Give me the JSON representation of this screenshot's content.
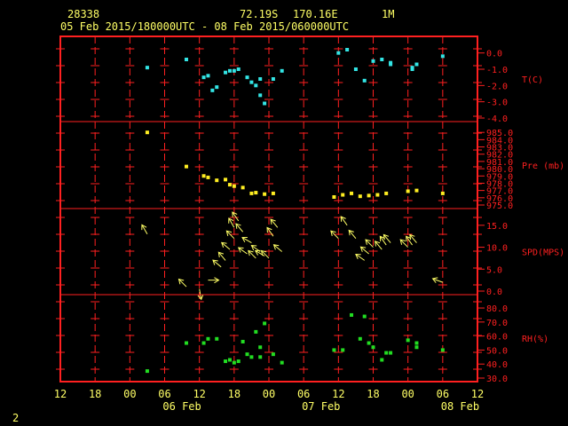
{
  "header": {
    "station": "28338",
    "lat": "72.19S",
    "lon": "170.16E",
    "interval": "1M",
    "range": "05 Feb 2015/180000UTC - 08 Feb 2015/060000UTC"
  },
  "footer": {
    "page": "2"
  },
  "colors": {
    "frame": "#ff2020",
    "text": "#ffff66",
    "temp": "#33e5e5",
    "pres": "#ffee22",
    "wind": "#ffff66",
    "rh": "#22dd22"
  },
  "chart_data": {
    "type": "scatter",
    "x_unit": "hours since 05 Feb 12 UTC",
    "x_ticks": [
      "12",
      "18",
      "00",
      "06",
      "12",
      "18",
      "00",
      "06",
      "12",
      "18",
      "00",
      "06",
      "12"
    ],
    "date_labels": [
      "06 Feb",
      "07 Feb",
      "08 Feb"
    ],
    "panels": [
      {
        "name": "temperature",
        "label": "T(C)",
        "ylim": [
          -4.0,
          0.8
        ],
        "ticks": [
          "0.0",
          "-1.0",
          "-2.0",
          "-3.0",
          "-4.0"
        ],
        "tick_values": [
          0,
          -1,
          -2,
          -3,
          -4
        ],
        "points": [
          [
            20,
            -0.9
          ],
          [
            29,
            -0.4
          ],
          [
            33,
            -1.5
          ],
          [
            34,
            -1.4
          ],
          [
            35,
            -2.3
          ],
          [
            36,
            -2.1
          ],
          [
            38,
            -1.2
          ],
          [
            39,
            -1.1
          ],
          [
            40,
            -1.1
          ],
          [
            41,
            -1.0
          ],
          [
            43,
            -1.5
          ],
          [
            44,
            -1.8
          ],
          [
            45,
            -2.0
          ],
          [
            46,
            -1.6
          ],
          [
            46,
            -2.6
          ],
          [
            47,
            -3.1
          ],
          [
            49,
            -1.6
          ],
          [
            51,
            -1.1
          ],
          [
            64,
            0.0
          ],
          [
            66,
            0.2
          ],
          [
            68,
            -1.0
          ],
          [
            70,
            -1.7
          ],
          [
            72,
            -0.5
          ],
          [
            74,
            -0.4
          ],
          [
            76,
            -0.6
          ],
          [
            76,
            -0.7
          ],
          [
            81,
            -1.0
          ],
          [
            81,
            -0.9
          ],
          [
            82,
            -0.7
          ],
          [
            88,
            -0.2
          ]
        ]
      },
      {
        "name": "pressure",
        "label": "Pre (mb)",
        "ylim": [
          975.0,
          986.0
        ],
        "ticks": [
          "985.0",
          "984.0",
          "983.0",
          "982.0",
          "981.0",
          "980.0",
          "979.0",
          "978.0",
          "977.0",
          "976.0",
          "975.0"
        ],
        "tick_values": [
          985,
          984,
          983,
          982,
          981,
          980,
          979,
          978,
          977,
          976,
          975
        ],
        "points": [
          [
            20,
            985.0
          ],
          [
            29,
            980.3
          ],
          [
            33,
            979.0
          ],
          [
            34,
            978.8
          ],
          [
            36,
            978.4
          ],
          [
            38,
            978.5
          ],
          [
            39,
            977.8
          ],
          [
            40,
            977.6
          ],
          [
            42,
            977.4
          ],
          [
            44,
            976.6
          ],
          [
            45,
            976.7
          ],
          [
            47,
            976.5
          ],
          [
            49,
            976.6
          ],
          [
            63,
            976.1
          ],
          [
            65,
            976.4
          ],
          [
            67,
            976.6
          ],
          [
            69,
            976.2
          ],
          [
            71,
            976.3
          ],
          [
            73,
            976.4
          ],
          [
            75,
            976.6
          ],
          [
            80,
            976.9
          ],
          [
            82,
            977.0
          ],
          [
            88,
            976.6
          ]
        ]
      },
      {
        "name": "wind",
        "label": "SPD(MPS)",
        "ylim": [
          0,
          18
        ],
        "ticks": [
          "15.0",
          "10.0",
          "5.0",
          "0.0"
        ],
        "tick_values": [
          15,
          10,
          5,
          0
        ],
        "points": [
          [
            20,
            13.0,
            -30
          ],
          [
            29,
            1.0,
            -45
          ],
          [
            32,
            0.5,
            170
          ],
          [
            34,
            2.5,
            90
          ],
          [
            37,
            5.5,
            -50
          ],
          [
            38,
            7.0,
            -40
          ],
          [
            39,
            9.5,
            -50
          ],
          [
            40,
            12.0,
            -45
          ],
          [
            40,
            14.5,
            -30
          ],
          [
            41,
            16.0,
            -35
          ],
          [
            42,
            13.5,
            -40
          ],
          [
            43,
            8.5,
            -55
          ],
          [
            44,
            11.0,
            -60
          ],
          [
            45,
            7.5,
            -45
          ],
          [
            46,
            9.0,
            -55
          ],
          [
            47,
            8.0,
            -60
          ],
          [
            48,
            7.5,
            -45
          ],
          [
            49,
            12.5,
            -35
          ],
          [
            50,
            14.5,
            -40
          ],
          [
            51,
            9.0,
            -50
          ],
          [
            64,
            12.0,
            -45
          ],
          [
            66,
            15.0,
            -35
          ],
          [
            68,
            12.0,
            -40
          ],
          [
            70,
            7.0,
            -55
          ],
          [
            71,
            8.5,
            -50
          ],
          [
            72,
            10.0,
            -45
          ],
          [
            74,
            9.5,
            -40
          ],
          [
            75,
            10.5,
            -35
          ],
          [
            76,
            11.0,
            -40
          ],
          [
            80,
            10.0,
            -45
          ],
          [
            81,
            10.5,
            -35
          ],
          [
            82,
            11.0,
            -40
          ],
          [
            88,
            2.0,
            -70
          ]
        ]
      },
      {
        "name": "rh",
        "label": "RH(%)",
        "ylim": [
          30.0,
          87.0
        ],
        "ticks": [
          "80.0",
          "70.0",
          "60.0",
          "50.0",
          "40.0",
          "30.0"
        ],
        "tick_values": [
          80,
          70,
          60,
          50,
          40,
          30
        ],
        "points": [
          [
            20,
            35
          ],
          [
            29,
            55
          ],
          [
            33,
            55
          ],
          [
            34,
            58
          ],
          [
            36,
            58
          ],
          [
            38,
            42
          ],
          [
            39,
            43
          ],
          [
            40,
            41
          ],
          [
            41,
            42
          ],
          [
            42,
            56
          ],
          [
            43,
            47
          ],
          [
            44,
            45
          ],
          [
            45,
            63
          ],
          [
            46,
            52
          ],
          [
            46,
            45
          ],
          [
            47,
            69
          ],
          [
            49,
            47
          ],
          [
            51,
            41
          ],
          [
            63,
            50
          ],
          [
            65,
            50
          ],
          [
            67,
            75
          ],
          [
            69,
            58
          ],
          [
            70,
            74
          ],
          [
            71,
            55
          ],
          [
            72,
            52
          ],
          [
            74,
            43
          ],
          [
            75,
            48
          ],
          [
            76,
            48
          ],
          [
            80,
            57
          ],
          [
            82,
            55
          ],
          [
            82,
            52
          ],
          [
            88,
            50
          ]
        ]
      }
    ],
    "grid": "on",
    "xlim": [
      0,
      96
    ]
  }
}
